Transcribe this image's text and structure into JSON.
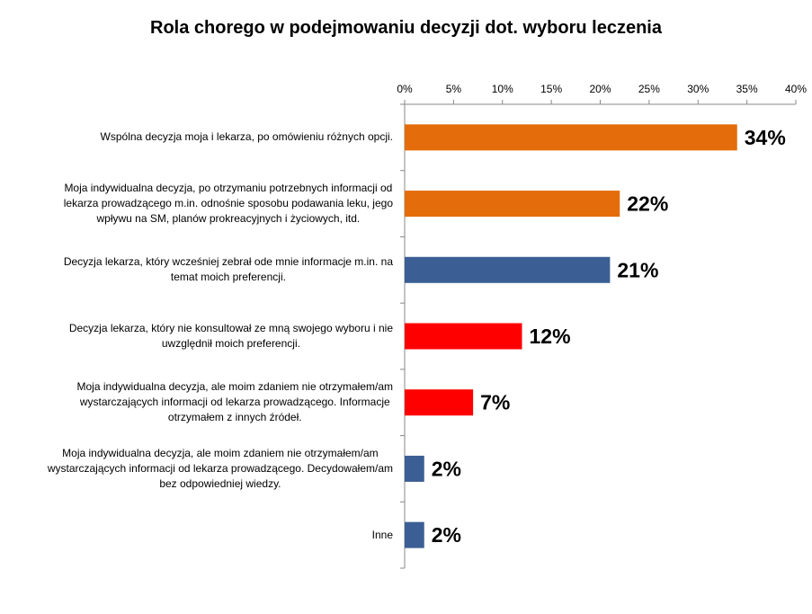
{
  "chart_data": {
    "type": "bar",
    "orientation": "horizontal",
    "title": "Rola chorego w podejmowaniu decyzji dot. wyboru leczenia",
    "x_ticks": [
      "0%",
      "5%",
      "10%",
      "15%",
      "20%",
      "25%",
      "30%",
      "35%",
      "40%"
    ],
    "xlim": [
      0,
      40
    ],
    "axis_position": "top",
    "grid": false,
    "categories": [
      "Wspólna decyzja moja i lekarza, po omówieniu różnych opcji.",
      "Moja indywidualna decyzja, po otrzymaniu potrzebnych informacji od lekarza prowadzącego m.in. odnośnie sposobu podawania leku, jego wpływu na SM, planów prokreacyjnych i życiowych, itd.",
      "Decyzja lekarza, który wcześniej zebrał ode mnie informacje m.in. na temat moich preferencji.",
      "Decyzja lekarza, który nie konsultował ze mną swojego wyboru i nie uwzględnił moich preferencji.",
      "Moja indywidualna decyzja, ale moim zdaniem nie otrzymałem/am wystarczających informacji od lekarza prowadzącego. Informacje otrzymałem z innych źródeł.",
      "Moja indywidualna decyzja, ale moim zdaniem nie otrzymałem/am wystarczających informacji od lekarza prowadzącego. Decydowałem/am bez odpowiedniej wiedzy.",
      "Inne"
    ],
    "category_lines": [
      [
        "Wspólna decyzja moja i lekarza, po omówieniu różnych opcji."
      ],
      [
        "Moja indywidualna decyzja, po otrzymaniu potrzebnych informacji od",
        "lekarza prowadzącego m.in. odnośnie sposobu podawania leku, jego",
        "wpływu na SM, planów prokreacyjnych i życiowych, itd."
      ],
      [
        "Decyzja lekarza, który wcześniej zebrał ode mnie informacje m.in. na",
        "temat moich preferencji."
      ],
      [
        "Decyzja lekarza, który nie konsultował ze mną swojego wyboru i nie",
        "uwzględnił moich preferencji."
      ],
      [
        "Moja indywidualna decyzja, ale moim zdaniem nie otrzymałem/am",
        "wystarczających informacji od lekarza prowadzącego. Informacje",
        "otrzymałem z innych źródeł."
      ],
      [
        "Moja indywidualna decyzja, ale moim zdaniem nie otrzymałem/am",
        "wystarczających informacji od lekarza prowadzącego. Decydowałem/am",
        "bez odpowiedniej wiedzy."
      ],
      [
        "Inne"
      ]
    ],
    "values": [
      34,
      22,
      21,
      12,
      7,
      2,
      2
    ],
    "value_labels": [
      "34%",
      "22%",
      "21%",
      "12%",
      "7%",
      "2%",
      "2%"
    ],
    "colors": [
      "#E46C0A",
      "#E46C0A",
      "#3B5F94",
      "#FF0000",
      "#FF0000",
      "#3B5F94",
      "#3B5F94"
    ],
    "axis_color": "#888888",
    "label_color": "#000000"
  }
}
